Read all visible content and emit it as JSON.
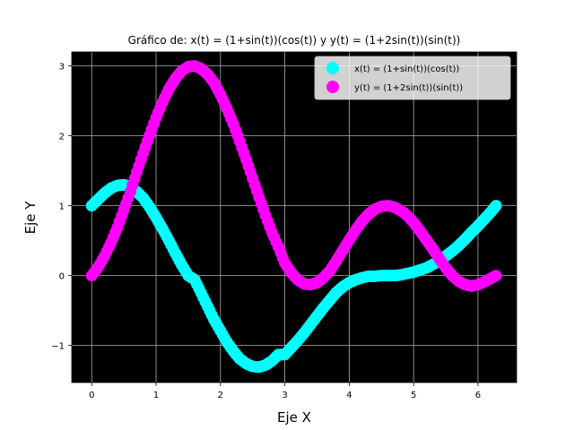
{
  "chart_data": {
    "type": "scatter",
    "title": "Gráfico de: x(t) = (1+sin(t))(cos(t)) y y(t) = (1+2sin(t))(sin(t))",
    "xlabel": "Eje X",
    "ylabel": "Eje Y",
    "xlim": [
      -0.31,
      6.6
    ],
    "ylim": [
      -1.53,
      3.2
    ],
    "xticks": [
      0,
      1,
      2,
      3,
      4,
      5,
      6
    ],
    "yticks": [
      -1,
      0,
      1,
      2,
      3
    ],
    "xtick_labels": [
      "0",
      "1",
      "2",
      "3",
      "4",
      "5",
      "6"
    ],
    "ytick_labels": [
      "−1",
      "0",
      "1",
      "2",
      "3"
    ],
    "grid": true,
    "background": "#000000",
    "legend_position": "top-right",
    "series": [
      {
        "name": "x(t) = (1+sin(t))(cos(t))",
        "color": "#00ffff",
        "x": [
          0.0,
          0.1,
          0.2,
          0.3,
          0.4,
          0.5,
          0.6,
          0.7,
          0.8,
          0.9,
          1.0,
          1.1,
          1.2,
          1.3,
          1.4,
          1.5,
          1.6,
          1.7,
          1.8,
          1.9,
          2.0,
          2.1,
          2.2,
          2.3,
          2.4,
          2.5,
          2.6,
          2.7,
          2.8,
          2.9,
          3.0,
          3.1,
          3.2,
          3.3,
          3.4,
          3.5,
          3.6,
          3.7,
          3.8,
          3.9,
          4.0,
          4.1,
          4.2,
          4.3,
          4.4,
          4.5,
          4.6,
          4.7,
          4.8,
          4.9,
          5.0,
          5.1,
          5.2,
          5.3,
          5.4,
          5.5,
          5.6,
          5.7,
          5.8,
          5.9,
          6.0,
          6.1,
          6.2,
          6.28
        ],
        "y": [
          1.0,
          1.09,
          1.18,
          1.25,
          1.29,
          1.3,
          1.27,
          1.2,
          1.11,
          0.98,
          0.83,
          0.67,
          0.5,
          0.32,
          0.15,
          0.0,
          -0.06,
          -0.25,
          -0.44,
          -0.63,
          -0.79,
          -0.95,
          -1.08,
          -1.19,
          -1.26,
          -1.3,
          -1.31,
          -1.28,
          -1.22,
          -1.13,
          -1.13,
          -1.03,
          -0.93,
          -0.82,
          -0.7,
          -0.58,
          -0.46,
          -0.35,
          -0.24,
          -0.16,
          -0.1,
          -0.06,
          -0.03,
          -0.01,
          -0.01,
          0.0,
          0.0,
          0.0,
          0.01,
          0.03,
          0.05,
          0.08,
          0.11,
          0.16,
          0.21,
          0.28,
          0.35,
          0.43,
          0.52,
          0.62,
          0.71,
          0.81,
          0.91,
          1.0
        ]
      },
      {
        "name": "y(t) = (1+2sin(t))(sin(t))",
        "color": "#ff00ff",
        "x": [
          0.0,
          0.1,
          0.2,
          0.3,
          0.4,
          0.5,
          0.6,
          0.7,
          0.8,
          0.9,
          1.0,
          1.1,
          1.2,
          1.3,
          1.4,
          1.5,
          1.6,
          1.7,
          1.8,
          1.9,
          2.0,
          2.1,
          2.2,
          2.3,
          2.4,
          2.5,
          2.6,
          2.7,
          2.8,
          2.9,
          3.0,
          3.1,
          3.2,
          3.3,
          3.4,
          3.5,
          3.6,
          3.7,
          3.8,
          3.9,
          4.0,
          4.1,
          4.2,
          4.3,
          4.4,
          4.5,
          4.6,
          4.7,
          4.8,
          4.9,
          5.0,
          5.1,
          5.2,
          5.3,
          5.4,
          5.5,
          5.6,
          5.7,
          5.8,
          5.9,
          6.0,
          6.1,
          6.2,
          6.28
        ],
        "y": [
          0.0,
          0.12,
          0.28,
          0.47,
          0.69,
          0.94,
          1.2,
          1.48,
          1.75,
          2.01,
          2.26,
          2.48,
          2.67,
          2.82,
          2.93,
          2.99,
          3.0,
          2.96,
          2.88,
          2.76,
          2.59,
          2.39,
          2.17,
          1.92,
          1.66,
          1.39,
          1.12,
          0.86,
          0.62,
          0.41,
          0.18,
          0.04,
          -0.06,
          -0.12,
          -0.13,
          -0.1,
          -0.03,
          0.07,
          0.21,
          0.36,
          0.51,
          0.65,
          0.78,
          0.88,
          0.95,
          0.99,
          1.0,
          0.98,
          0.93,
          0.86,
          0.76,
          0.64,
          0.51,
          0.38,
          0.24,
          0.11,
          0.0,
          -0.08,
          -0.13,
          -0.15,
          -0.13,
          -0.09,
          -0.04,
          0.0
        ]
      }
    ]
  }
}
